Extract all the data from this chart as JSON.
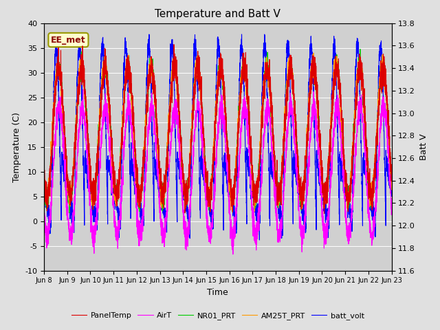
{
  "title": "Temperature and Batt V",
  "ylabel_left": "Temperature (C)",
  "ylabel_right": "Batt V",
  "xlabel": "Time",
  "annotation": "EE_met",
  "xtick_labels": [
    "Jun 8",
    "Jun 9",
    "Jun 10",
    "Jun 11",
    "Jun 12",
    "Jun 13",
    "Jun 14",
    "Jun 15",
    "Jun 16",
    "Jun 17",
    "Jun 18",
    "Jun 19",
    "Jun 20",
    "Jun 21",
    "Jun 22",
    "Jun 23"
  ],
  "ylim_left": [
    -10,
    40
  ],
  "ylim_right": [
    11.6,
    13.8
  ],
  "yticks_left": [
    -10,
    -5,
    0,
    5,
    10,
    15,
    20,
    25,
    30,
    35,
    40
  ],
  "yticks_right": [
    11.6,
    11.8,
    12.0,
    12.2,
    12.4,
    12.6,
    12.8,
    13.0,
    13.2,
    13.4,
    13.6,
    13.8
  ],
  "legend": [
    "PanelTemp",
    "AirT",
    "NR01_PRT",
    "AM25T_PRT",
    "batt_volt"
  ],
  "legend_colors": [
    "#dd0000",
    "#ff00ff",
    "#00cc00",
    "#ff9900",
    "#0000ff"
  ],
  "bg_color": "#e0e0e0",
  "plot_bg_color": "#d0d0d0",
  "n_points": 4320,
  "days": 15
}
